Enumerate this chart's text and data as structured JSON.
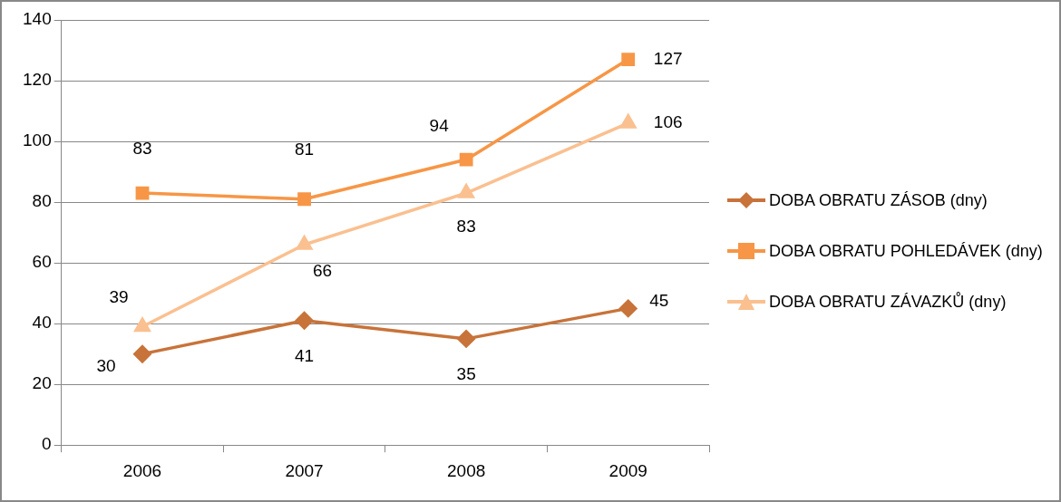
{
  "chart_data": {
    "type": "line",
    "categories": [
      "2006",
      "2007",
      "2008",
      "2009"
    ],
    "series": [
      {
        "name": "DOBA OBRATU ZÁSOB (dny)",
        "color": "#c8733a",
        "marker": "diamond",
        "values": [
          30,
          41,
          35,
          45
        ]
      },
      {
        "name": "DOBA OBRATU POHLEDÁVEK (dny)",
        "color": "#f79646",
        "marker": "square",
        "values": [
          83,
          81,
          94,
          127
        ]
      },
      {
        "name": "DOBA OBRATU ZÁVAZKŮ (dny)",
        "color": "#fac090",
        "marker": "triangle",
        "values": [
          39,
          66,
          83,
          106
        ]
      }
    ],
    "ylim": [
      0,
      140
    ],
    "yticks": [
      0,
      20,
      40,
      60,
      80,
      100,
      120,
      140
    ],
    "grid": "y",
    "legend": "right",
    "data_labels": true,
    "line_style": "solid"
  }
}
